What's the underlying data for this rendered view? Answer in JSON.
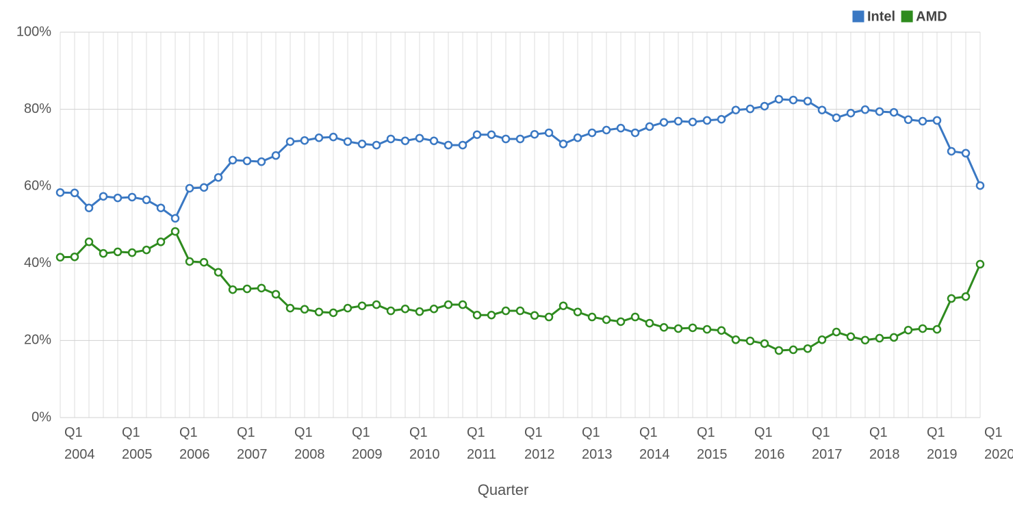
{
  "chart_data": {
    "type": "line",
    "x_label": "Quarter",
    "categories": [
      "Q1 2004",
      null,
      null,
      null,
      "Q1 2005",
      null,
      null,
      null,
      "Q1 2006",
      null,
      null,
      null,
      "Q1 2007",
      null,
      null,
      null,
      "Q1 2008",
      null,
      null,
      null,
      "Q1 2009",
      null,
      null,
      null,
      "Q1 2010",
      null,
      null,
      null,
      "Q1 2011",
      null,
      null,
      null,
      "Q1 2012",
      null,
      null,
      null,
      "Q1 2013",
      null,
      null,
      null,
      "Q1 2014",
      null,
      null,
      null,
      "Q1 2015",
      null,
      null,
      null,
      "Q1 2016",
      null,
      null,
      null,
      "Q1 2017",
      null,
      null,
      null,
      "Q1 2018",
      null,
      null,
      null,
      "Q1 2019",
      null,
      null,
      null,
      "Q1 2020"
    ],
    "series": [
      {
        "name": "Intel",
        "color": "#3a78c3",
        "values": [
          58.4,
          58.3,
          54.4,
          57.4,
          57.0,
          57.2,
          56.5,
          54.4,
          51.7,
          59.5,
          59.7,
          62.3,
          66.8,
          66.6,
          66.4,
          68.0,
          71.6,
          71.9,
          72.6,
          72.8,
          71.6,
          71.0,
          70.7,
          72.3,
          71.8,
          72.5,
          71.8,
          70.7,
          70.7,
          73.4,
          73.4,
          72.3,
          72.3,
          73.5,
          73.9,
          71.0,
          72.6,
          73.9,
          74.6,
          75.1,
          73.9,
          75.5,
          76.6,
          76.9,
          76.7,
          77.1,
          77.4,
          79.8,
          80.1,
          80.8,
          82.6,
          82.4,
          82.1,
          79.8,
          77.8,
          79.0,
          79.9,
          79.4,
          79.2,
          77.3,
          76.9,
          77.1,
          69.1,
          68.6,
          60.2
        ]
      },
      {
        "name": "AMD",
        "color": "#2e8b1e",
        "values": [
          41.6,
          41.7,
          45.6,
          42.6,
          43.0,
          42.8,
          43.5,
          45.6,
          48.3,
          40.5,
          40.3,
          37.7,
          33.2,
          33.4,
          33.6,
          32.0,
          28.4,
          28.1,
          27.4,
          27.2,
          28.4,
          29.0,
          29.3,
          27.7,
          28.2,
          27.5,
          28.2,
          29.3,
          29.3,
          26.6,
          26.6,
          27.7,
          27.7,
          26.5,
          26.1,
          29.0,
          27.4,
          26.1,
          25.4,
          24.9,
          26.1,
          24.5,
          23.4,
          23.1,
          23.3,
          22.9,
          22.6,
          20.2,
          19.9,
          19.2,
          17.4,
          17.6,
          17.9,
          20.2,
          22.2,
          21.0,
          20.1,
          20.6,
          20.8,
          22.7,
          23.1,
          22.9,
          30.9,
          31.4,
          39.8
        ]
      }
    ],
    "ylim": [
      0,
      100
    ],
    "yticks": [
      {
        "value": 0,
        "label": "0%"
      },
      {
        "value": 20,
        "label": "20%"
      },
      {
        "value": 40,
        "label": "40%"
      },
      {
        "value": 60,
        "label": "60%"
      },
      {
        "value": 80,
        "label": "80%"
      },
      {
        "value": 100,
        "label": "100%"
      }
    ],
    "grid": true,
    "legend": "top-right"
  }
}
